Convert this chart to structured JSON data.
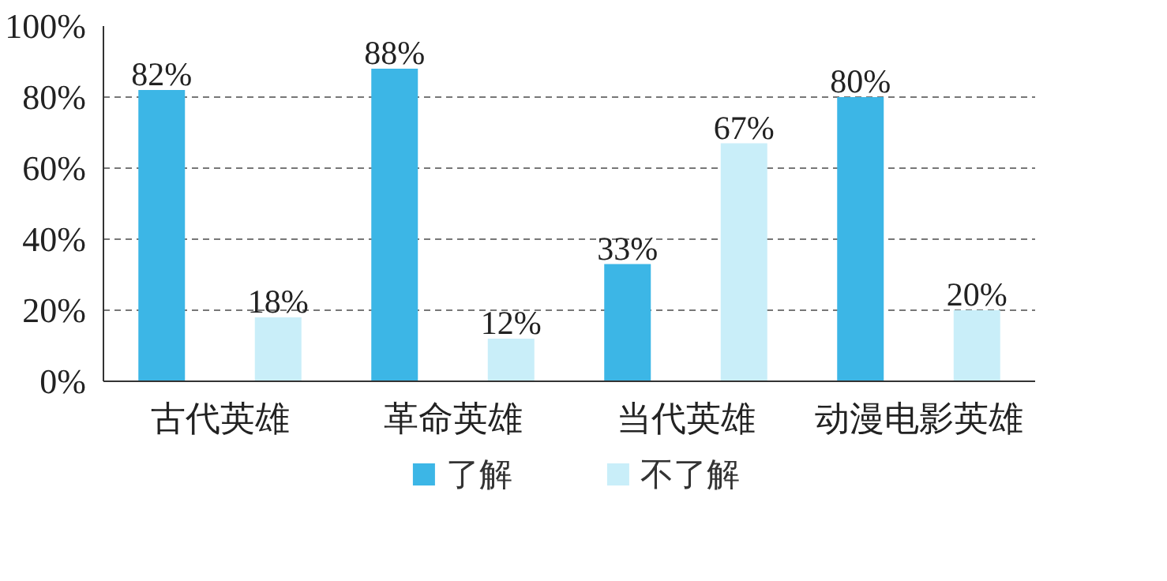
{
  "chart_data": {
    "type": "bar",
    "categories": [
      "古代英雄",
      "革命英雄",
      "当代英雄",
      "动漫电影英雄"
    ],
    "series": [
      {
        "name": "了解",
        "color": "#3cb6e6",
        "values": [
          82,
          88,
          33,
          80
        ],
        "value_labels": [
          "82%",
          "88%",
          "33%",
          "80%"
        ]
      },
      {
        "name": "不了解",
        "color": "#c9eef9",
        "values": [
          18,
          12,
          67,
          20
        ],
        "value_labels": [
          "18%",
          "12%",
          "67%",
          "20%"
        ]
      }
    ],
    "ylim": [
      0,
      100
    ],
    "yticks": [
      {
        "value": 0,
        "label": "0%"
      },
      {
        "value": 20,
        "label": "20%"
      },
      {
        "value": 40,
        "label": "40%"
      },
      {
        "value": 60,
        "label": "60%"
      },
      {
        "value": 80,
        "label": "80%"
      },
      {
        "value": 100,
        "label": "100%"
      }
    ],
    "grid": "y",
    "legend": "bottom"
  }
}
